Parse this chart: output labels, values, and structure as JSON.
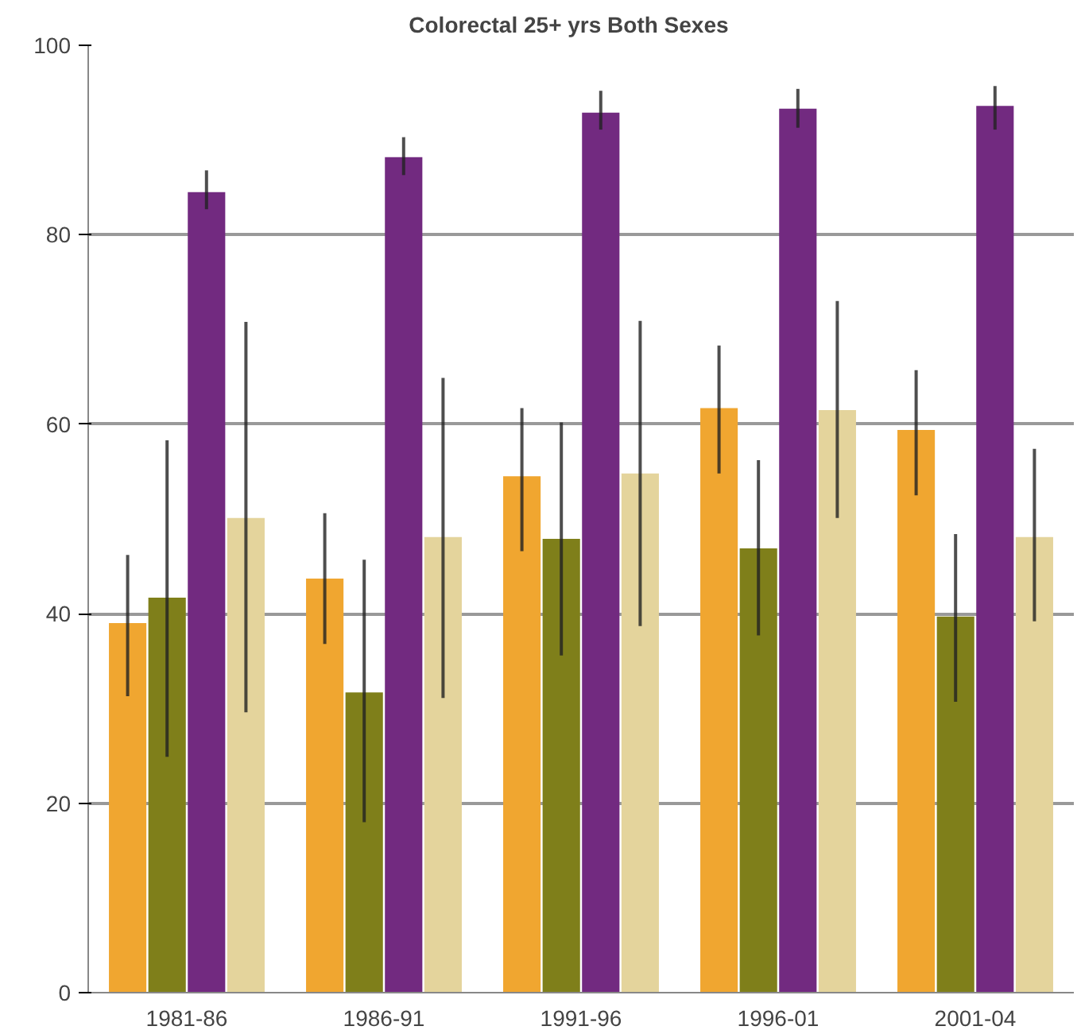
{
  "chart_data": {
    "type": "bar",
    "title": "Colorectal   25+ yrs   Both Sexes",
    "categories": [
      "1981-86",
      "1986-91",
      "1991-96",
      "1996-01",
      "2001-04"
    ],
    "series": [
      {
        "color": "#f0a630",
        "values": [
          39.0,
          43.7,
          54.5,
          61.7,
          59.4
        ],
        "errors": [
          [
            31.3,
            46.2
          ],
          [
            36.8,
            50.6
          ],
          [
            46.6,
            61.7
          ],
          [
            54.8,
            68.3
          ],
          [
            52.5,
            65.7
          ]
        ]
      },
      {
        "color": "#7f7f1a",
        "values": [
          41.7,
          31.7,
          47.9,
          46.9,
          39.7
        ],
        "errors": [
          [
            24.9,
            58.3
          ],
          [
            18.0,
            45.7
          ],
          [
            35.6,
            60.2
          ],
          [
            37.7,
            56.2
          ],
          [
            30.7,
            48.4
          ]
        ]
      },
      {
        "color": "#722a80",
        "values": [
          84.5,
          88.2,
          92.9,
          93.3,
          93.6
        ],
        "errors": [
          [
            82.7,
            86.8
          ],
          [
            86.3,
            90.3
          ],
          [
            91.1,
            95.2
          ],
          [
            91.3,
            95.4
          ],
          [
            91.1,
            95.7
          ]
        ]
      },
      {
        "color": "#e4d49c",
        "values": [
          50.1,
          48.1,
          54.8,
          61.5,
          48.1
        ],
        "errors": [
          [
            29.6,
            70.8
          ],
          [
            31.1,
            64.9
          ],
          [
            38.7,
            70.9
          ],
          [
            50.1,
            73.0
          ],
          [
            39.2,
            57.4
          ]
        ]
      }
    ],
    "ylim": [
      0,
      100
    ],
    "yticks": [
      0,
      20,
      40,
      60,
      80,
      100
    ],
    "grid": "y"
  }
}
